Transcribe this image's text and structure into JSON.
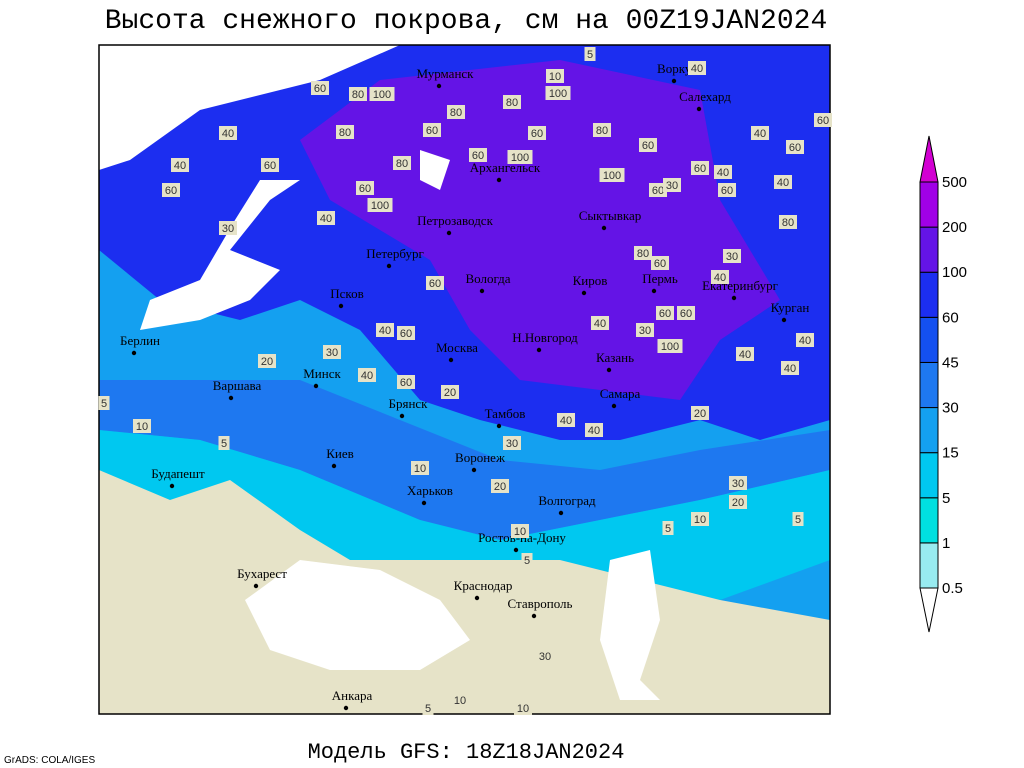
{
  "header": {
    "title": "Высота снежного покрова, см на 00Z19JAN2024"
  },
  "footer": {
    "model": "Модель GFS: 18Z18JAN2024",
    "credit": "GrADS: COLA/IGES"
  },
  "colorbar": {
    "levels": [
      0.5,
      1,
      5,
      15,
      30,
      45,
      60,
      100,
      200,
      500
    ],
    "colors": [
      "#ffffff",
      "#98ebf0",
      "#00e0e0",
      "#00c8f0",
      "#14a0f0",
      "#1e78f0",
      "#1450f0",
      "#1c2ef0",
      "#6414e6",
      "#a000e6",
      "#d200d2"
    ]
  },
  "cities": [
    "Мурманск",
    "Воркута",
    "Салехард",
    "Архангельск",
    "Сыктывкар",
    "Петрозаводск",
    "Петербург",
    "Вологда",
    "Киров",
    "Пермь",
    "Екатеринбург",
    "Курган",
    "Псков",
    "Н.Новгород",
    "Казань",
    "Москва",
    "Минск",
    "Берлин",
    "Варшава",
    "Брянск",
    "Тамбов",
    "Самара",
    "Киев",
    "Воронеж",
    "Харьков",
    "Волгоград",
    "Будапешт",
    "Ростов-на-Дону",
    "Бухарест",
    "Краснодар",
    "Ставрополь",
    "Анкара"
  ],
  "contour_labels": [
    60,
    80,
    100,
    40,
    80,
    60,
    40,
    60,
    30,
    60,
    40,
    60,
    100,
    80,
    80,
    60,
    100,
    60,
    80,
    100,
    60,
    60,
    30,
    60,
    40,
    60,
    40,
    60,
    40,
    80,
    60,
    40,
    20,
    30,
    40,
    60,
    40,
    60,
    60,
    20,
    5,
    10,
    5,
    10,
    30,
    20,
    40,
    40,
    30,
    20,
    10,
    5,
    5,
    10,
    5,
    30,
    10,
    10,
    5,
    40,
    40,
    40,
    100,
    60,
    60,
    40,
    60,
    80,
    30,
    20,
    5,
    10,
    100,
    80,
    40,
    30
  ]
}
